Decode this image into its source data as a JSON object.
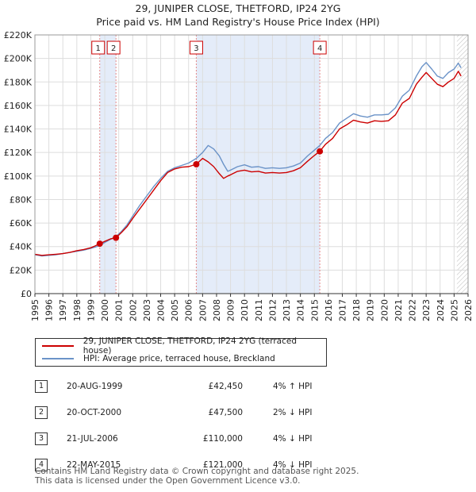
{
  "header": {
    "title_line1": "29, JUNIPER CLOSE, THETFORD, IP24 2YG",
    "title_line2": "Price paid vs. HM Land Registry's House Price Index (HPI)"
  },
  "colors": {
    "price_line": "#cc0000",
    "hpi_line": "#6b93c8",
    "shade": "#e4ecf9",
    "marker_box_border": "#cc0000",
    "vline": "#e58a8a"
  },
  "chart_data": {
    "type": "line",
    "title": "Price paid vs. HM Land Registry's House Price Index (HPI)",
    "xlabel": "",
    "ylabel": "",
    "xlim": [
      1995,
      2026
    ],
    "ylim": [
      0,
      220000
    ],
    "x_ticks": [
      1995,
      1996,
      1997,
      1998,
      1999,
      2000,
      2001,
      2002,
      2003,
      2004,
      2005,
      2006,
      2007,
      2008,
      2009,
      2010,
      2011,
      2012,
      2013,
      2014,
      2015,
      2016,
      2017,
      2018,
      2019,
      2020,
      2021,
      2022,
      2023,
      2024,
      2025,
      2026
    ],
    "y_ticks": [
      {
        "value": 0,
        "label": "£0"
      },
      {
        "value": 20000,
        "label": "£20K"
      },
      {
        "value": 40000,
        "label": "£40K"
      },
      {
        "value": 60000,
        "label": "£60K"
      },
      {
        "value": 80000,
        "label": "£80K"
      },
      {
        "value": 100000,
        "label": "£100K"
      },
      {
        "value": 120000,
        "label": "£120K"
      },
      {
        "value": 140000,
        "label": "£140K"
      },
      {
        "value": 160000,
        "label": "£160K"
      },
      {
        "value": 180000,
        "label": "£180K"
      },
      {
        "value": 200000,
        "label": "£200K"
      },
      {
        "value": 220000,
        "label": "£220K"
      }
    ],
    "shaded_ranges": [
      [
        1999.64,
        2000.8
      ],
      [
        2006.55,
        2015.39
      ]
    ],
    "hatched_after": 2025.2,
    "series": [
      {
        "name": "29, JUNIPER CLOSE, THETFORD, IP24 2YG (terraced house)",
        "color": "#cc0000",
        "x": [
          1995.0,
          1995.5,
          1996.0,
          1996.5,
          1997.0,
          1997.5,
          1998.0,
          1998.5,
          1999.0,
          1999.3,
          1999.64,
          2000.0,
          2000.4,
          2000.8,
          2001.2,
          2001.6,
          2002.0,
          2002.5,
          2003.0,
          2003.5,
          2004.0,
          2004.5,
          2005.0,
          2005.5,
          2006.0,
          2006.55,
          2007.0,
          2007.4,
          2007.8,
          2008.2,
          2008.5,
          2008.8,
          2009.0,
          2009.5,
          2010.0,
          2010.5,
          2011.0,
          2011.5,
          2012.0,
          2012.5,
          2013.0,
          2013.5,
          2014.0,
          2014.5,
          2015.0,
          2015.39,
          2015.8,
          2016.3,
          2016.8,
          2017.3,
          2017.8,
          2018.3,
          2018.8,
          2019.3,
          2019.8,
          2020.3,
          2020.8,
          2021.3,
          2021.8,
          2022.3,
          2022.7,
          2023.0,
          2023.4,
          2023.8,
          2024.2,
          2024.6,
          2025.0,
          2025.3,
          2025.5
        ],
        "y": [
          33500,
          32500,
          33000,
          33500,
          34000,
          35000,
          36500,
          37500,
          39000,
          40500,
          42450,
          44500,
          46500,
          47500,
          52000,
          57000,
          64000,
          72000,
          80000,
          88000,
          96000,
          103000,
          106000,
          107500,
          108000,
          110000,
          115000,
          112000,
          108000,
          102000,
          98000,
          100000,
          101000,
          104000,
          105000,
          103500,
          104000,
          102500,
          103000,
          102500,
          103000,
          104500,
          107000,
          112500,
          117500,
          121000,
          127000,
          132000,
          140000,
          143500,
          147500,
          146000,
          145000,
          147000,
          146500,
          147000,
          152000,
          162000,
          166000,
          178000,
          184000,
          188000,
          183000,
          178000,
          176000,
          180000,
          183000,
          189000,
          185000
        ]
      },
      {
        "name": "HPI: Average price, terraced house, Breckland",
        "color": "#6b93c8",
        "x": [
          1995.0,
          1995.5,
          1996.0,
          1996.5,
          1997.0,
          1997.5,
          1998.0,
          1998.5,
          1999.0,
          1999.3,
          1999.64,
          2000.0,
          2000.4,
          2000.8,
          2001.2,
          2001.6,
          2002.0,
          2002.5,
          2003.0,
          2003.5,
          2004.0,
          2004.5,
          2005.0,
          2005.5,
          2006.0,
          2006.55,
          2007.0,
          2007.4,
          2007.8,
          2008.2,
          2008.5,
          2008.8,
          2009.0,
          2009.5,
          2010.0,
          2010.5,
          2011.0,
          2011.5,
          2012.0,
          2012.5,
          2013.0,
          2013.5,
          2014.0,
          2014.5,
          2015.0,
          2015.39,
          2015.8,
          2016.3,
          2016.8,
          2017.3,
          2017.8,
          2018.3,
          2018.8,
          2019.3,
          2019.8,
          2020.3,
          2020.8,
          2021.3,
          2021.8,
          2022.3,
          2022.7,
          2023.0,
          2023.4,
          2023.8,
          2024.2,
          2024.6,
          2025.0,
          2025.3,
          2025.5
        ],
        "y": [
          33000,
          32000,
          32500,
          33000,
          34000,
          35000,
          36000,
          37000,
          38500,
          39500,
          40800,
          43500,
          46000,
          48500,
          53000,
          58500,
          66000,
          75000,
          83000,
          91000,
          98000,
          104000,
          107000,
          109000,
          111000,
          115000,
          120000,
          126000,
          123000,
          117000,
          110000,
          104000,
          105000,
          108000,
          109500,
          107500,
          108000,
          106500,
          107000,
          106500,
          107000,
          108500,
          111000,
          117000,
          122000,
          126000,
          132000,
          137000,
          145000,
          149000,
          153000,
          151000,
          150000,
          152000,
          152000,
          152500,
          158000,
          168000,
          173000,
          185000,
          193000,
          196500,
          191000,
          185000,
          183000,
          188000,
          191000,
          196000,
          192000
        ]
      }
    ],
    "sales_markers": [
      {
        "num": "1",
        "x": 1999.64,
        "price": 42450
      },
      {
        "num": "2",
        "x": 2000.8,
        "price": 47500
      },
      {
        "num": "3",
        "x": 2006.55,
        "price": 110000
      },
      {
        "num": "4",
        "x": 2015.39,
        "price": 121000
      }
    ]
  },
  "legend": {
    "items": [
      {
        "label": "29, JUNIPER CLOSE, THETFORD, IP24 2YG (terraced house)"
      },
      {
        "label": "HPI: Average price, terraced house, Breckland"
      }
    ]
  },
  "sales_table": [
    {
      "num": "1",
      "date": "20-AUG-1999",
      "price": "£42,450",
      "pct": "4% ↑ HPI"
    },
    {
      "num": "2",
      "date": "20-OCT-2000",
      "price": "£47,500",
      "pct": "2% ↓ HPI"
    },
    {
      "num": "3",
      "date": "21-JUL-2006",
      "price": "£110,000",
      "pct": "4% ↓ HPI"
    },
    {
      "num": "4",
      "date": "22-MAY-2015",
      "price": "£121,000",
      "pct": "4% ↓ HPI"
    }
  ],
  "footer": {
    "line1": "Contains HM Land Registry data © Crown copyright and database right 2025.",
    "line2": "This data is licensed under the Open Government Licence v3.0."
  }
}
